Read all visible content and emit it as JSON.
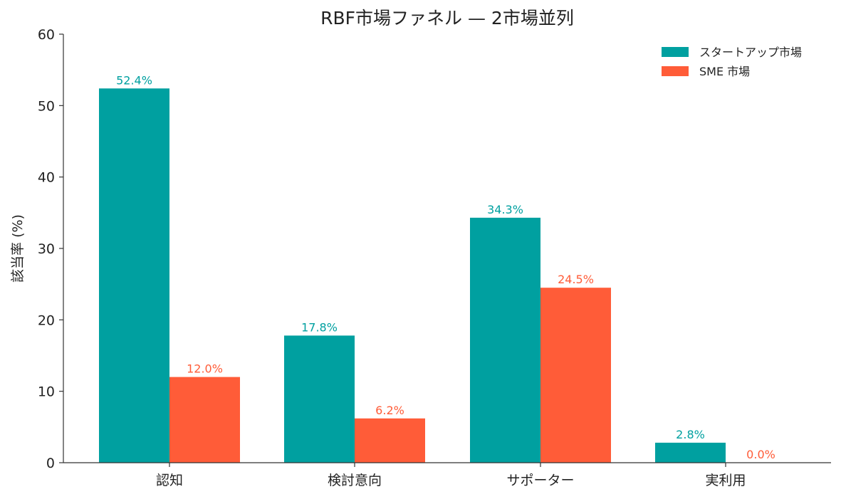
{
  "chart_data": {
    "type": "bar",
    "title": "RBF市場ファネル — 2市場並列",
    "xlabel": "",
    "ylabel": "該当率 (%)",
    "ylim": [
      0,
      60
    ],
    "yticks": [
      "0",
      "10",
      "20",
      "30",
      "40",
      "50",
      "60"
    ],
    "categories": [
      "認知",
      "検討意向",
      "サポーター",
      "実利用"
    ],
    "series": [
      {
        "name": "スタートアップ市場",
        "color": "#00A0A0",
        "values": [
          52.4,
          17.8,
          34.3,
          2.8
        ],
        "labels": [
          "52.4%",
          "17.8%",
          "34.3%",
          "2.8%"
        ]
      },
      {
        "name": "SME 市場",
        "color": "#FF5C38",
        "values": [
          12.0,
          6.2,
          24.5,
          0.0
        ],
        "labels": [
          "12.0%",
          "6.2%",
          "24.5%",
          "0.0%"
        ]
      }
    ],
    "grid": false,
    "legend_position": "top-right"
  }
}
